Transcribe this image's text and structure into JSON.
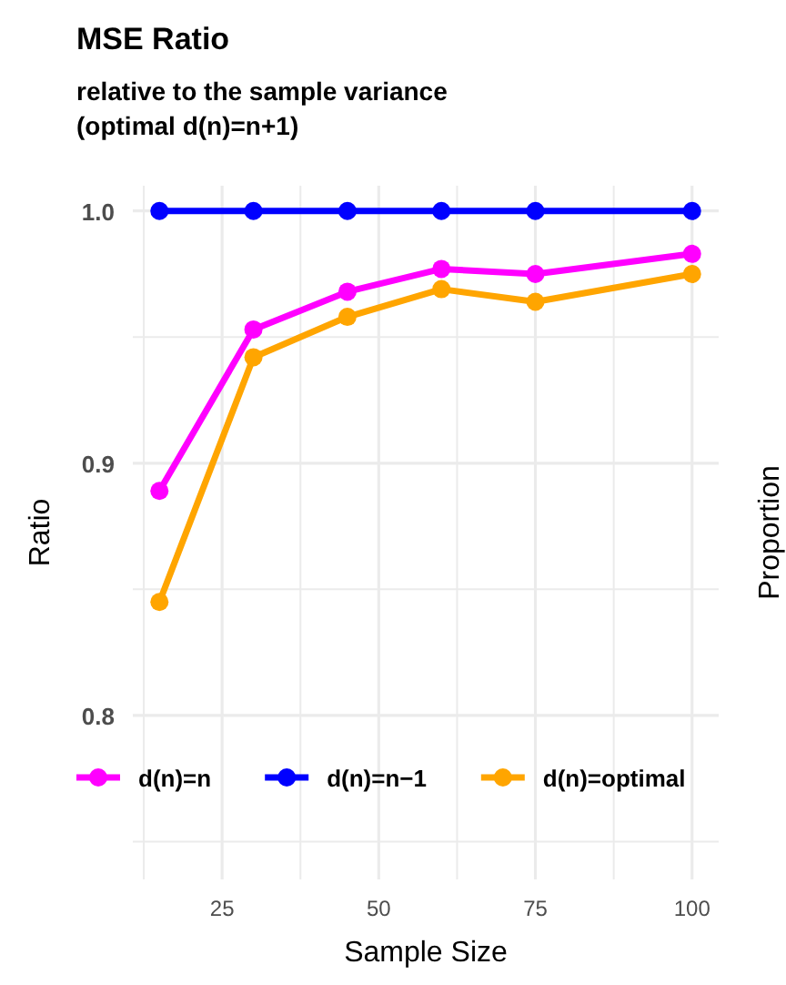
{
  "chart_data": {
    "type": "line",
    "title": "MSE Ratio",
    "subtitle": "relative to the sample variance\n(optimal d(n)=n+1)",
    "xlabel": "Sample Size",
    "ylabel": "Ratio",
    "y2label": "Proportion",
    "x": [
      15,
      30,
      45,
      60,
      75,
      100
    ],
    "series": [
      {
        "name": "d(n)=n",
        "color": "#ff00ff",
        "values": [
          0.889,
          0.953,
          0.968,
          0.977,
          0.975,
          0.983
        ]
      },
      {
        "name": "d(n)=n−1",
        "color": "#0000ff",
        "values": [
          1.0,
          1.0,
          1.0,
          1.0,
          1.0,
          1.0
        ]
      },
      {
        "name": "d(n)=optimal",
        "color": "#ffa500",
        "values": [
          0.845,
          0.942,
          0.958,
          0.969,
          0.964,
          0.975
        ]
      }
    ],
    "xlim": [
      10.75,
      104.25
    ],
    "xticks": [
      {
        "value": 12.5,
        "label": null
      },
      25,
      {
        "value": 37.5,
        "label": null
      },
      50,
      {
        "value": 62.5,
        "label": null
      },
      75,
      {
        "value": 87.5,
        "label": null
      },
      100
    ],
    "ylim": [
      0.735,
      1.01
    ],
    "yticks": [
      {
        "value": 0.75,
        "label": null
      },
      {
        "value": 0.8,
        "label": "0.8"
      },
      {
        "value": 0.85,
        "label": null
      },
      {
        "value": 0.9,
        "label": "0.9"
      },
      {
        "value": 0.95,
        "label": null
      },
      {
        "value": 1.0,
        "label": "1.0"
      }
    ],
    "grid": true,
    "legend": "bottom",
    "marker": "circle",
    "line_style": "solid"
  }
}
